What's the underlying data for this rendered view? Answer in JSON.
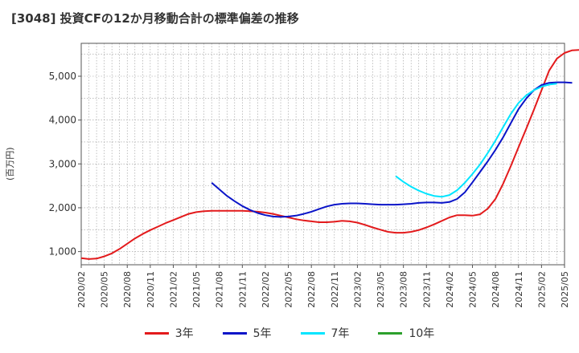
{
  "chart_data": {
    "type": "line",
    "title": "[3048]  投資CFの12か月移動合計の標準偏差の推移",
    "ylabel": "(百万円)",
    "xlabel": "",
    "ylim": [
      700,
      5750
    ],
    "yticks": [
      1000,
      2000,
      3000,
      4000,
      5000
    ],
    "ytick_labels": [
      "1,000",
      "2,000",
      "3,000",
      "4,000",
      "5,000"
    ],
    "xtick_labels": [
      "2020/02",
      "2020/05",
      "2020/08",
      "2020/11",
      "2021/02",
      "2021/05",
      "2021/08",
      "2021/11",
      "2022/02",
      "2022/05",
      "2022/08",
      "2022/11",
      "2023/02",
      "2023/05",
      "2023/08",
      "2023/11",
      "2024/02",
      "2024/05",
      "2024/08",
      "2024/11",
      "2025/02",
      "2025/05"
    ],
    "grid": true,
    "legend_position": "bottom",
    "x_start": "2020/02",
    "x_end": "2025/05",
    "series": [
      {
        "name": "3年",
        "color": "#e31a1c",
        "start": "2020/02",
        "values": [
          850,
          830,
          840,
          890,
          960,
          1060,
          1180,
          1300,
          1400,
          1490,
          1570,
          1650,
          1720,
          1790,
          1860,
          1900,
          1920,
          1930,
          1930,
          1930,
          1930,
          1930,
          1920,
          1910,
          1890,
          1860,
          1820,
          1780,
          1740,
          1710,
          1690,
          1670,
          1670,
          1680,
          1700,
          1690,
          1660,
          1610,
          1550,
          1500,
          1450,
          1430,
          1430,
          1450,
          1490,
          1550,
          1620,
          1700,
          1780,
          1830,
          1830,
          1820,
          1850,
          1980,
          2200,
          2550,
          2950,
          3380,
          3800,
          4230,
          4680,
          5130,
          5400,
          5530,
          5590,
          5600,
          5590,
          5560
        ]
      },
      {
        "name": "5年",
        "color": "#0a14c8",
        "start": "2021/07",
        "values": [
          2570,
          2420,
          2270,
          2150,
          2040,
          1950,
          1880,
          1830,
          1800,
          1790,
          1800,
          1820,
          1860,
          1910,
          1970,
          2030,
          2070,
          2090,
          2100,
          2100,
          2090,
          2080,
          2070,
          2070,
          2070,
          2080,
          2090,
          2110,
          2120,
          2120,
          2110,
          2130,
          2200,
          2350,
          2580,
          2820,
          3060,
          3320,
          3610,
          3930,
          4250,
          4490,
          4680,
          4800,
          4850,
          4860,
          4860,
          4850
        ]
      },
      {
        "name": "7年",
        "color": "#00e5ff",
        "start": "2023/07",
        "values": [
          2720,
          2590,
          2480,
          2390,
          2320,
          2270,
          2250,
          2290,
          2400,
          2570,
          2770,
          2990,
          3250,
          3530,
          3840,
          4140,
          4390,
          4560,
          4680,
          4760,
          4810,
          4830
        ]
      },
      {
        "name": "10年",
        "color": "#2ca02c",
        "start": "2025/02",
        "values": []
      }
    ]
  }
}
